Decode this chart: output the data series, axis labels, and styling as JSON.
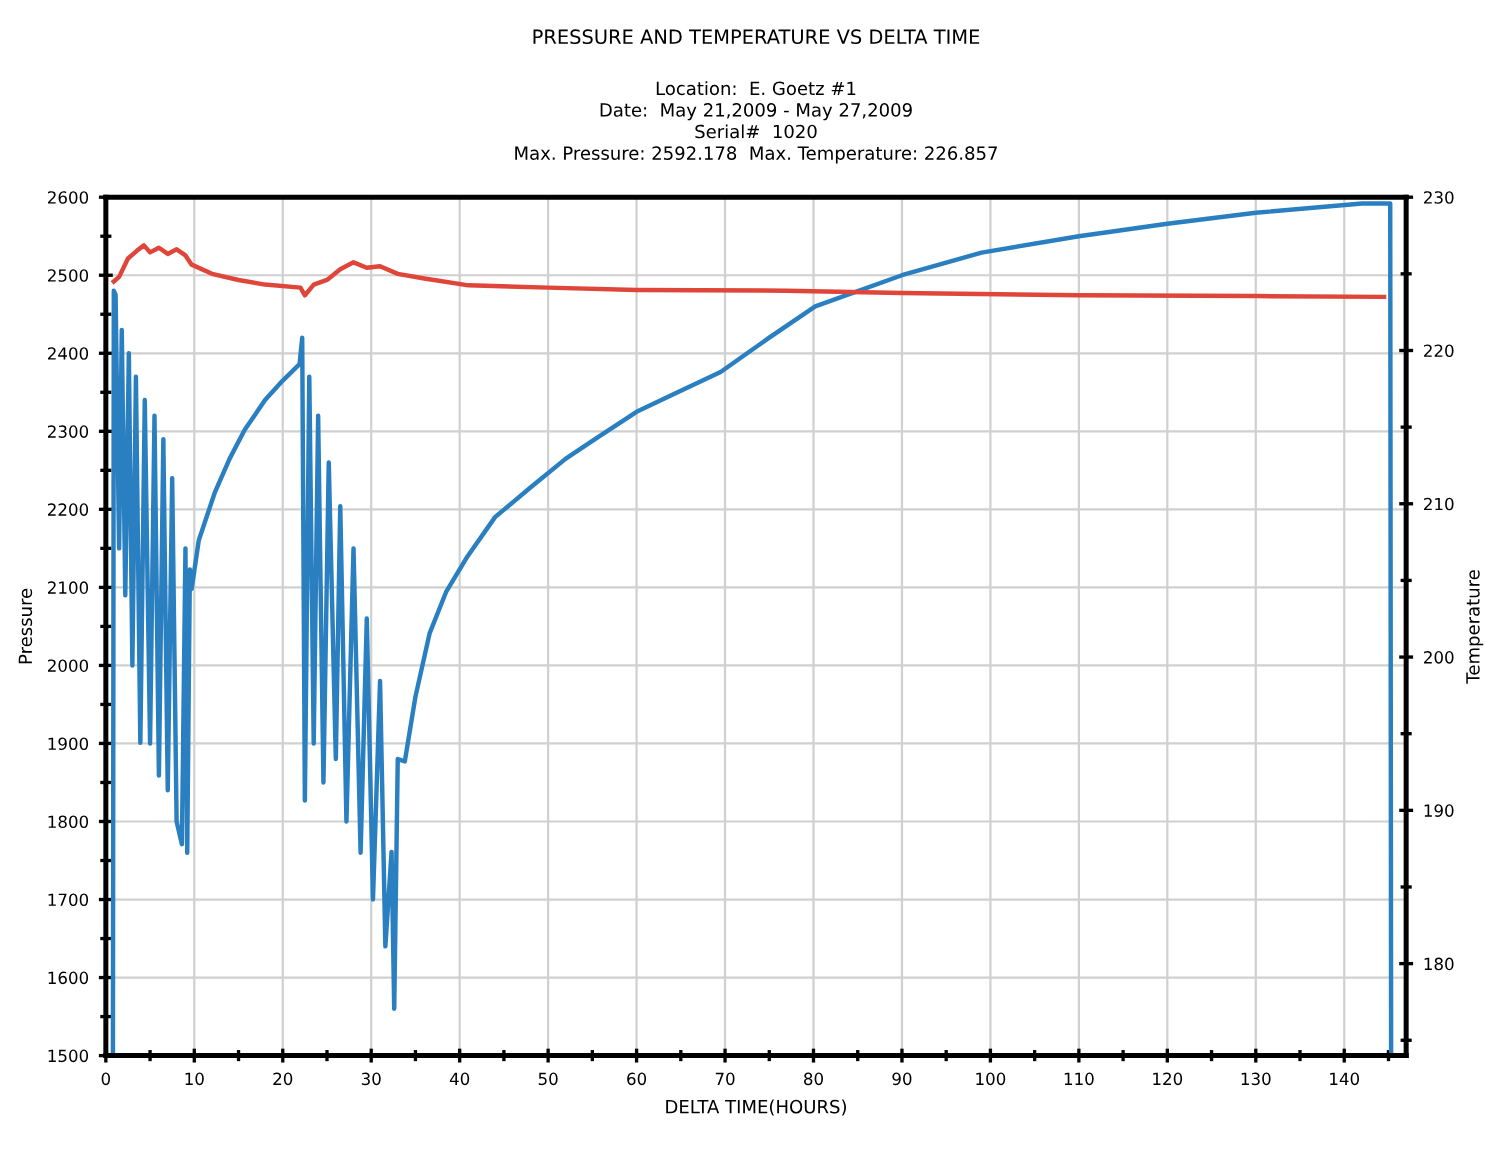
{
  "chart_data": {
    "type": "line",
    "title": "PRESSURE AND TEMPERATURE VS DELTA TIME",
    "subtitle": "Location:  E. Goetz #1\nDate:  May 21,2009 - May 27,2009\nSerial#  1020\nMax. Pressure: 2592.178  Max. Temperature: 226.857",
    "xlabel": "DELTA TIME(HOURS)",
    "ylabel": "Pressure",
    "y2label": "Temperature",
    "xlim": [
      0,
      147
    ],
    "xticks": [
      0,
      10,
      20,
      30,
      40,
      50,
      60,
      70,
      80,
      90,
      100,
      110,
      120,
      130,
      140
    ],
    "ylim": [
      1500,
      2600
    ],
    "yticks": [
      1500,
      1600,
      1700,
      1800,
      1900,
      2000,
      2100,
      2200,
      2300,
      2400,
      2500,
      2600
    ],
    "y2lim": [
      174,
      230
    ],
    "y2ticks": [
      180,
      190,
      200,
      210,
      220,
      230
    ],
    "grid": true,
    "series": [
      {
        "color": "#2a7fc1",
        "x": [
          0.8,
          0.9,
          1.1,
          1.5,
          1.8,
          2.2,
          2.6,
          3.0,
          3.4,
          3.9,
          4.4,
          5.0,
          5.5,
          6.0,
          6.5,
          7.0,
          7.5,
          8.0,
          8.6,
          9.0,
          9.2,
          9.5,
          9.7,
          10.5,
          12.3,
          14.0,
          15.7,
          18.0,
          20.0,
          21.9,
          22.2,
          22.5,
          23.0,
          23.5,
          24.0,
          24.6,
          25.2,
          26.0,
          26.5,
          27.2,
          28.0,
          28.8,
          29.5,
          30.2,
          31.0,
          31.6,
          32.3,
          32.6,
          33.0,
          33.8,
          35.0,
          36.6,
          38.5,
          40.9,
          44.0,
          48.0,
          52.0,
          55.3,
          60.0,
          65.0,
          69.5,
          75.0,
          80.2,
          90.0,
          99.0,
          110.0,
          120.0,
          130.0,
          142.0,
          145.2,
          145.3
        ],
        "values": [
          1500,
          2480,
          2475,
          2150,
          2430,
          2090,
          2400,
          2000,
          2370,
          1901,
          2340,
          1900,
          2320,
          1859,
          2290,
          1840,
          2240,
          1800,
          1771,
          2150,
          1760,
          2123,
          2098,
          2160,
          2221,
          2265,
          2302,
          2340,
          2365,
          2386,
          2420,
          1827,
          2370,
          1900,
          2320,
          1850,
          2260,
          1880,
          2204,
          1800,
          2150,
          1760,
          2060,
          1700,
          1980,
          1640,
          1761,
          1560,
          1880,
          1877,
          1960,
          2041,
          2095,
          2140,
          2190,
          2228,
          2265,
          2290,
          2325,
          2352,
          2376,
          2420,
          2460,
          2500,
          2529,
          2550,
          2566,
          2580,
          2592,
          2592,
          1500
        ]
      },
      {
        "color": "#e0453a",
        "axis": "y2",
        "x": [
          0.9,
          1.5,
          2.5,
          3.5,
          4.3,
          5.0,
          6.0,
          7.0,
          8.0,
          9.0,
          9.7,
          12.0,
          15.0,
          18.0,
          22.0,
          22.5,
          23.5,
          25.0,
          26.5,
          28.0,
          29.5,
          31.0,
          33.0,
          36.0,
          41.0,
          50.0,
          60.0,
          77.0,
          90.0,
          110.0,
          130.0,
          144.5
        ],
        "values": [
          224.5,
          224.8,
          226.0,
          226.5,
          226.857,
          226.4,
          226.7,
          226.3,
          226.6,
          226.2,
          225.6,
          225.0,
          224.6,
          224.3,
          224.1,
          223.6,
          224.3,
          224.6,
          225.3,
          225.75,
          225.4,
          225.5,
          225.0,
          224.7,
          224.25,
          224.1,
          223.95,
          223.9,
          223.75,
          223.6,
          223.55,
          223.5
        ]
      }
    ]
  }
}
